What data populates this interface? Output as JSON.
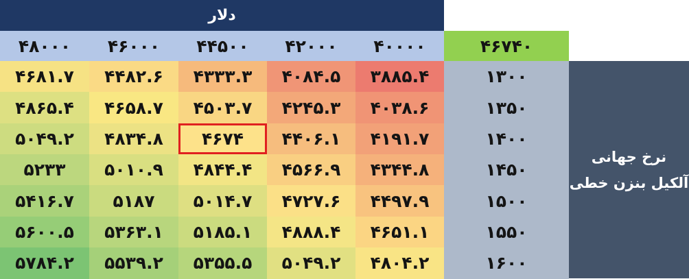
{
  "header": {
    "currency_label": "دلار"
  },
  "corner_value": "۴۶۷۴۰",
  "columns": [
    "۴۰۰۰۰",
    "۴۲۰۰۰",
    "۴۴۵۰۰",
    "۴۶۰۰۰",
    "۴۸۰۰۰"
  ],
  "side_label": {
    "line1": "نرخ جهانی",
    "line2": "آلکیل بنزن خطی"
  },
  "rows": [
    {
      "label": "۱۳۰۰",
      "values": [
        "۳۸۸۵.۴",
        "۴۰۸۴.۵",
        "۴۳۳۳.۳",
        "۴۴۸۲.۶",
        "۴۶۸۱.۷"
      ]
    },
    {
      "label": "۱۳۵۰",
      "values": [
        "۴۰۳۸.۶",
        "۴۲۴۵.۳",
        "۴۵۰۳.۷",
        "۴۶۵۸.۷",
        "۴۸۶۵.۴"
      ]
    },
    {
      "label": "۱۴۰۰",
      "values": [
        "۴۱۹۱.۷",
        "۴۴۰۶.۱",
        "۴۶۷۴",
        "۴۸۳۴.۸",
        "۵۰۴۹.۲"
      ]
    },
    {
      "label": "۱۴۵۰",
      "values": [
        "۴۳۴۴.۸",
        "۴۵۶۶.۹",
        "۴۸۴۴.۴",
        "۵۰۱۰.۹",
        "۵۲۳۳"
      ]
    },
    {
      "label": "۱۵۰۰",
      "values": [
        "۴۴۹۷.۹",
        "۴۷۲۷.۶",
        "۵۰۱۴.۷",
        "۵۱۸۷",
        "۵۴۱۶.۷"
      ]
    },
    {
      "label": "۱۵۵۰",
      "values": [
        "۴۶۵۱.۱",
        "۴۸۸۸.۴",
        "۵۱۸۵.۱",
        "۵۳۶۳.۱",
        "۵۶۰۰.۵"
      ]
    },
    {
      "label": "۱۶۰۰",
      "values": [
        "۴۸۰۴.۲",
        "۵۰۴۹.۲",
        "۵۳۵۵.۵",
        "۵۵۳۹.۲",
        "۵۷۸۴.۲"
      ]
    }
  ],
  "highlight": {
    "row": 2,
    "col": 2,
    "border_color": "#e02020"
  },
  "colors": {
    "dollar_header": "#1f3864",
    "column_header": "#b4c7e7",
    "corner": "#92d050",
    "row_header": "#adb9ca",
    "side_label": "#44546a"
  }
}
